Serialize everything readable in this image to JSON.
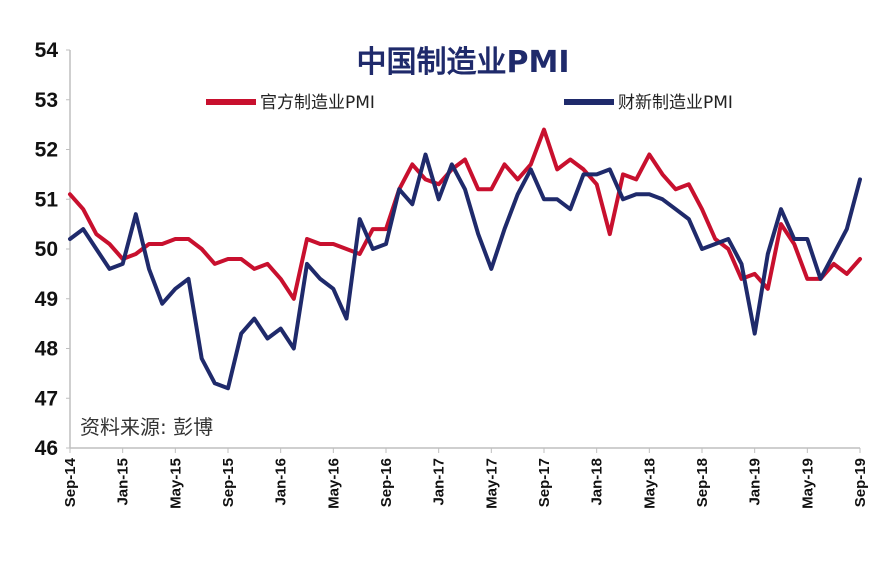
{
  "chart_data": {
    "type": "line",
    "title": "中国制造业PMI",
    "source": "资料来源: 彭博",
    "ylim": [
      46,
      54
    ],
    "yticks": [
      46,
      47,
      48,
      49,
      50,
      51,
      52,
      53,
      54
    ],
    "xticks": [
      {
        "index": 0,
        "label": "Sep-14"
      },
      {
        "index": 4,
        "label": "Jan-15"
      },
      {
        "index": 8,
        "label": "May-15"
      },
      {
        "index": 12,
        "label": "Sep-15"
      },
      {
        "index": 16,
        "label": "Jan-16"
      },
      {
        "index": 20,
        "label": "May-16"
      },
      {
        "index": 24,
        "label": "Sep-16"
      },
      {
        "index": 28,
        "label": "Jan-17"
      },
      {
        "index": 32,
        "label": "May-17"
      },
      {
        "index": 36,
        "label": "Sep-17"
      },
      {
        "index": 40,
        "label": "Jan-18"
      },
      {
        "index": 44,
        "label": "May-18"
      },
      {
        "index": 48,
        "label": "Sep-18"
      },
      {
        "index": 52,
        "label": "Jan-19"
      },
      {
        "index": 56,
        "label": "May-19"
      },
      {
        "index": 60,
        "label": "Sep-19"
      }
    ],
    "grid": false,
    "legend": "top",
    "series": [
      {
        "name": "官方制造业PMI",
        "color": "#c8102e",
        "values": [
          51.1,
          50.8,
          50.3,
          50.1,
          49.8,
          49.9,
          50.1,
          50.1,
          50.2,
          50.2,
          50.0,
          49.7,
          49.8,
          49.8,
          49.6,
          49.7,
          49.4,
          49.0,
          50.2,
          50.1,
          50.1,
          50.0,
          49.9,
          50.4,
          50.4,
          51.2,
          51.7,
          51.4,
          51.3,
          51.6,
          51.8,
          51.2,
          51.2,
          51.7,
          51.4,
          51.7,
          52.4,
          51.6,
          51.8,
          51.6,
          51.3,
          50.3,
          51.5,
          51.4,
          51.9,
          51.5,
          51.2,
          51.3,
          50.8,
          50.2,
          50.0,
          49.4,
          49.5,
          49.2,
          50.5,
          50.1,
          49.4,
          49.4,
          49.7,
          49.5,
          49.8
        ]
      },
      {
        "name": "财新制造业PMI",
        "color": "#1f2a6b",
        "values": [
          50.2,
          50.4,
          50.0,
          49.6,
          49.7,
          50.7,
          49.6,
          48.9,
          49.2,
          49.4,
          47.8,
          47.3,
          47.2,
          48.3,
          48.6,
          48.2,
          48.4,
          48.0,
          49.7,
          49.4,
          49.2,
          48.6,
          50.6,
          50.0,
          50.1,
          51.2,
          50.9,
          51.9,
          51.0,
          51.7,
          51.2,
          50.3,
          49.6,
          50.4,
          51.1,
          51.6,
          51.0,
          51.0,
          50.8,
          51.5,
          51.5,
          51.6,
          51.0,
          51.1,
          51.1,
          51.0,
          50.8,
          50.6,
          50.0,
          50.1,
          50.2,
          49.7,
          48.3,
          49.9,
          50.8,
          50.2,
          50.2,
          49.4,
          49.9,
          50.4,
          51.4
        ]
      }
    ]
  }
}
